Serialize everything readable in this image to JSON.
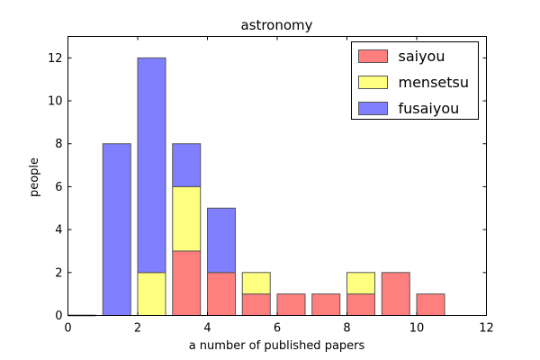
{
  "chart_data": {
    "type": "bar",
    "stacked": true,
    "title": "astronomy",
    "xlabel": "a number of published papers",
    "ylabel": "people",
    "xlim": [
      0,
      12
    ],
    "ylim": [
      0,
      13
    ],
    "x_ticks": [
      0,
      2,
      4,
      6,
      8,
      10,
      12
    ],
    "y_ticks": [
      0,
      2,
      4,
      6,
      8,
      10,
      12
    ],
    "grid": false,
    "legend_position": "top-right",
    "bar_x": [
      0,
      1,
      2,
      3,
      4,
      5,
      6,
      7,
      8,
      9,
      10
    ],
    "series": [
      {
        "name": "saiyou",
        "color": "#ff7f7f",
        "values": [
          0,
          0,
          0,
          3,
          2,
          1,
          1,
          1,
          1,
          2,
          1
        ]
      },
      {
        "name": "mensetsu",
        "color": "#ffff7f",
        "values": [
          0,
          0,
          2,
          3,
          0,
          1,
          0,
          0,
          1,
          0,
          0
        ]
      },
      {
        "name": "fusaiyou",
        "color": "#7f7fff",
        "values": [
          0,
          8,
          10,
          2,
          3,
          0,
          0,
          0,
          0,
          0,
          0
        ]
      }
    ]
  }
}
